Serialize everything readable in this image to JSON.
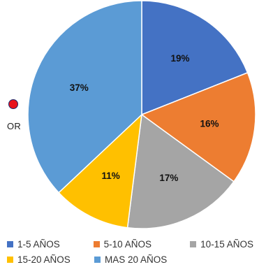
{
  "chart_data": {
    "type": "pie",
    "categories": [
      "1-5 AÑOS",
      "5-10 AÑOS",
      "10-15 AÑOS",
      "15-20 AÑOS",
      "MAS 20 AÑOS"
    ],
    "values": [
      19,
      16,
      17,
      11,
      37
    ],
    "labels": [
      "19%",
      "16%",
      "17%",
      "11%",
      "37%"
    ],
    "colors": [
      "#4472c4",
      "#ed7d31",
      "#a5a5a5",
      "#ffc000",
      "#5b9bd5"
    ],
    "legend_position": "bottom"
  },
  "marker": {
    "label": "OR",
    "color": "#e8121c"
  }
}
